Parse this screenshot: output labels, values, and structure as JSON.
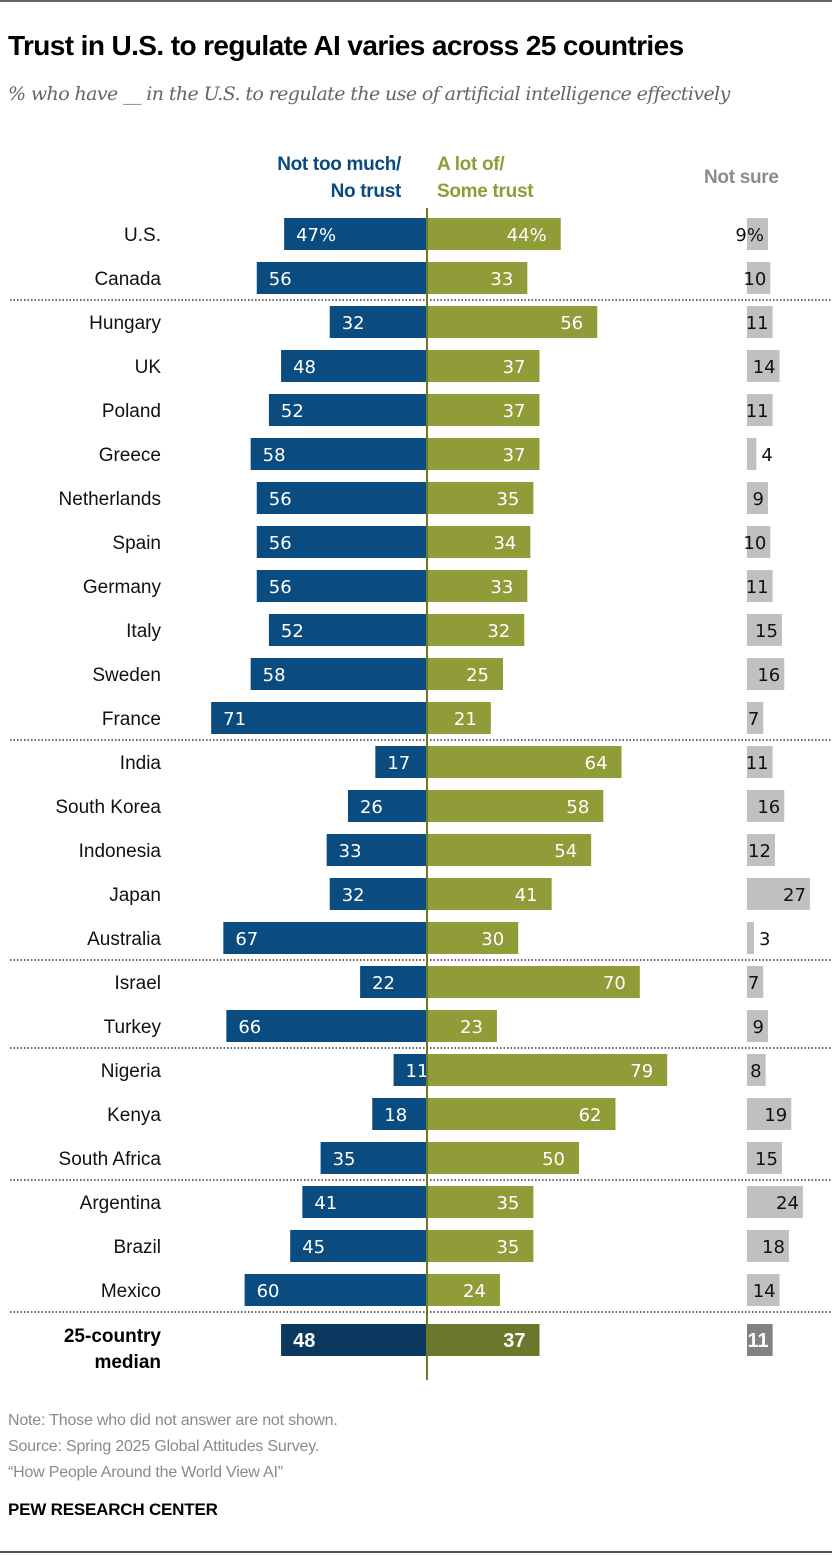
{
  "title": "Trust in U.S. to regulate AI varies across 25 countries",
  "subtitle": "% who have __ in the U.S. to regulate the use of artificial intelligence effectively",
  "legend": {
    "no_trust_line1": "Not too much/",
    "no_trust_line2": "No trust",
    "trust_line1": "A lot of/",
    "trust_line2": "Some trust",
    "not_sure": "Not sure"
  },
  "colors": {
    "no_trust": "#0b4c80",
    "trust": "#8f9c38",
    "not_sure": "#c0c0c0",
    "no_trust_median": "#0a385f",
    "trust_median": "#6d772b",
    "not_sure_median": "#828282",
    "axis": "#6d772b"
  },
  "chart_data": {
    "type": "bar",
    "subtype": "diverging-horizontal-bar",
    "title": "Trust in U.S. to regulate AI varies across 25 countries",
    "subtitle": "% who have __ in the U.S. to regulate the use of artificial intelligence effectively",
    "categories": [
      "U.S.",
      "Canada",
      "Hungary",
      "UK",
      "Poland",
      "Greece",
      "Netherlands",
      "Spain",
      "Germany",
      "Italy",
      "Sweden",
      "France",
      "India",
      "South Korea",
      "Indonesia",
      "Japan",
      "Australia",
      "Israel",
      "Turkey",
      "Nigeria",
      "Kenya",
      "South Africa",
      "Argentina",
      "Brazil",
      "Mexico",
      "25-country median"
    ],
    "series": [
      {
        "name": "Not too much/No trust",
        "values": [
          47,
          56,
          32,
          48,
          52,
          58,
          56,
          56,
          56,
          52,
          58,
          71,
          17,
          26,
          33,
          32,
          67,
          22,
          66,
          11,
          18,
          35,
          41,
          45,
          60,
          48
        ]
      },
      {
        "name": "A lot of/Some trust",
        "values": [
          44,
          33,
          56,
          37,
          37,
          37,
          35,
          34,
          33,
          32,
          25,
          21,
          64,
          58,
          54,
          41,
          30,
          70,
          23,
          79,
          62,
          50,
          35,
          35,
          24,
          37
        ]
      },
      {
        "name": "Not sure",
        "values": [
          9,
          10,
          11,
          14,
          11,
          4,
          9,
          10,
          11,
          15,
          16,
          7,
          11,
          16,
          12,
          27,
          3,
          7,
          9,
          8,
          19,
          15,
          24,
          18,
          14,
          11
        ]
      }
    ],
    "value_labels_with_percent": [
      "U.S."
    ],
    "group_separators_after": [
      "Canada",
      "France",
      "Australia",
      "Turkey",
      "South Africa",
      "Mexico"
    ],
    "unit": "%",
    "xlabel": "",
    "ylabel": "",
    "legend": "top",
    "grid": false
  },
  "median_label_line1": "25-country",
  "median_label_line2": "median",
  "notes": {
    "note": "Note: Those who did not answer are not shown.",
    "source": "Source: Spring 2025 Global Attitudes Survey.",
    "report": "“How People Around the World View AI”"
  },
  "brand": "PEW RESEARCH CENTER"
}
